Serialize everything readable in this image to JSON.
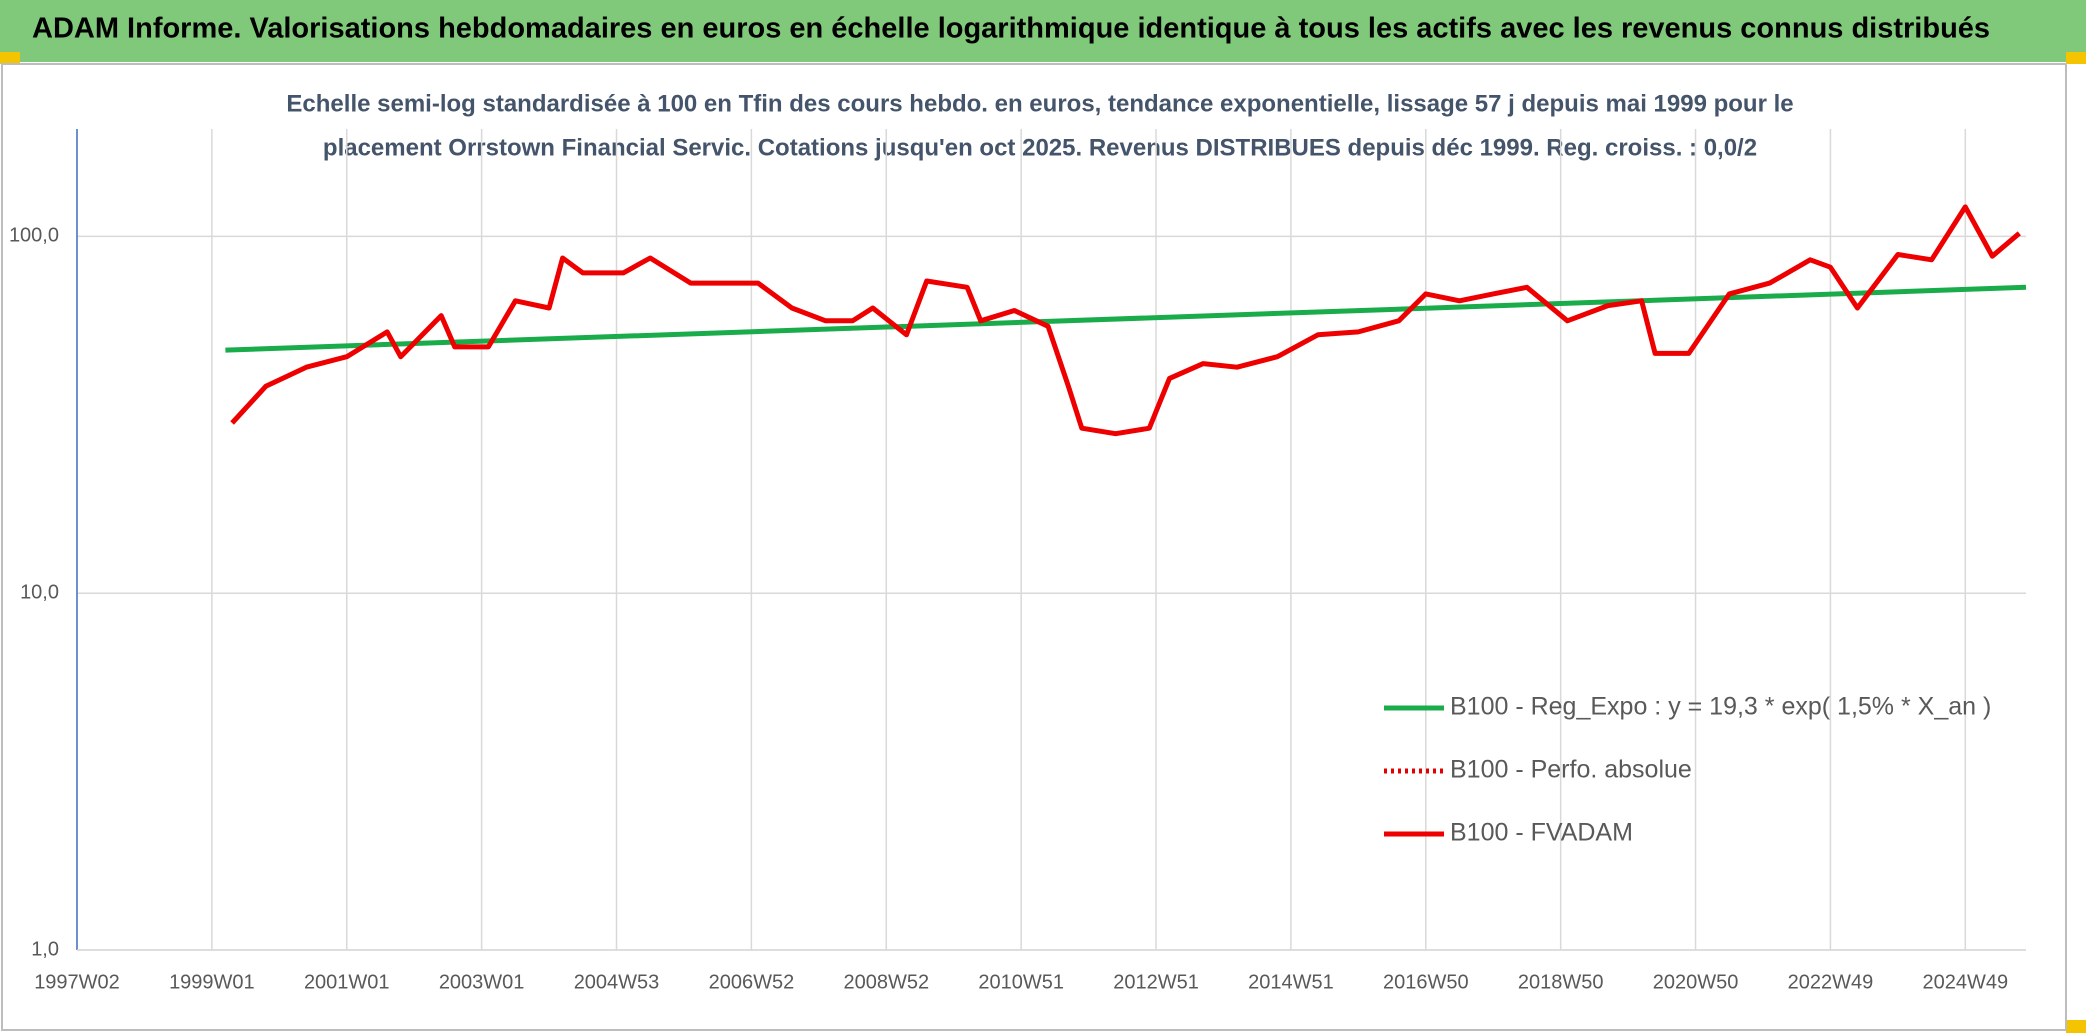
{
  "chart_data": {
    "type": "line",
    "title": "ADAM Informe. Valorisations hebdomadaires en euros en échelle logarithmique identique à tous les actifs avec les revenus connus distribués",
    "subtitle_lines": [
      "Echelle semi-log standardisée à 100 en Tfin des cours hebdo. en euros, tendance exponentielle, lissage 57 j depuis mai 1999 pour le",
      "placement Orrstown Financial Servic. Cotations jusqu'en oct 2025. Revenus DISTRIBUES depuis déc 1999. Reg. croiss. : 0,0/2"
    ],
    "log_y": true,
    "grid": true,
    "legend": "lower right",
    "xlim": [
      1997,
      2025.9
    ],
    "xticks": [
      {
        "value": 1997,
        "label": "1997W02"
      },
      {
        "value": 1999,
        "label": "1999W01"
      },
      {
        "value": 2001,
        "label": "2001W01"
      },
      {
        "value": 2003,
        "label": "2003W01"
      },
      {
        "value": 2005,
        "label": "2004W53"
      },
      {
        "value": 2007,
        "label": "2006W52"
      },
      {
        "value": 2009,
        "label": "2008W52"
      },
      {
        "value": 2011,
        "label": "2010W51"
      },
      {
        "value": 2013,
        "label": "2012W51"
      },
      {
        "value": 2015,
        "label": "2014W51"
      },
      {
        "value": 2017,
        "label": "2016W50"
      },
      {
        "value": 2019,
        "label": "2018W50"
      },
      {
        "value": 2021,
        "label": "2020W50"
      },
      {
        "value": 2023,
        "label": "2022W49"
      },
      {
        "value": 2025,
        "label": "2024W49"
      }
    ],
    "ylim": [
      1,
      200
    ],
    "yticks": [
      {
        "value": 1,
        "label": "1,0"
      },
      {
        "value": 10,
        "label": "10,0"
      },
      {
        "value": 100,
        "label": "100,0"
      }
    ],
    "series": [
      {
        "name": "B100 - Reg_Expo : y = 19,3 * exp( 1,5% *  X_an )",
        "color": "#1aab4a",
        "style": "solid",
        "x": [
          1999.2,
          2025.9
        ],
        "values": [
          48,
          72
        ]
      },
      {
        "name": "B100 - Perfo. absolue",
        "color": "#e30000",
        "style": "dotted",
        "x": [],
        "values": []
      },
      {
        "name": "B100 - FVADAM",
        "color": "#ee0000",
        "style": "solid",
        "x": [
          1999.3,
          1999.8,
          2000.4,
          2001.0,
          2001.6,
          2001.8,
          2002.4,
          2002.6,
          2003.1,
          2003.5,
          2004.0,
          2004.2,
          2004.5,
          2005.1,
          2005.5,
          2006.1,
          2006.6,
          2007.1,
          2007.6,
          2008.1,
          2008.5,
          2008.8,
          2009.3,
          2009.6,
          2010.2,
          2010.4,
          2010.9,
          2011.4,
          2011.7,
          2011.9,
          2012.4,
          2012.9,
          2013.2,
          2013.7,
          2014.2,
          2014.8,
          2015.4,
          2016.0,
          2016.6,
          2017.0,
          2017.5,
          2018.0,
          2018.5,
          2019.1,
          2019.7,
          2020.2,
          2020.4,
          2020.9,
          2021.5,
          2022.1,
          2022.7,
          2023.0,
          2023.4,
          2024.0,
          2024.5,
          2025.0,
          2025.4,
          2025.8
        ],
        "values": [
          30,
          38,
          43,
          46,
          54,
          46,
          60,
          49,
          49,
          66,
          63,
          87,
          79,
          79,
          87,
          74,
          74,
          74,
          63,
          58,
          58,
          63,
          53,
          75,
          72,
          58,
          62,
          56,
          38,
          29,
          28,
          29,
          40,
          44,
          43,
          46,
          53,
          54,
          58,
          69,
          66,
          69,
          72,
          58,
          64,
          66,
          47,
          47,
          69,
          74,
          86,
          82,
          63,
          89,
          86,
          121,
          88,
          102
        ]
      }
    ]
  }
}
